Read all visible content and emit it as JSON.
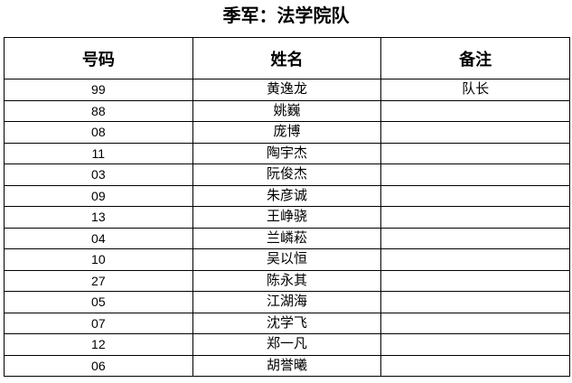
{
  "title": "季军：法学院队",
  "table": {
    "headers": [
      "号码",
      "姓名",
      "备注"
    ],
    "rows": [
      [
        "99",
        "黄逸龙",
        "队长"
      ],
      [
        "88",
        "姚巍",
        ""
      ],
      [
        "08",
        "庞博",
        ""
      ],
      [
        "11",
        "陶宇杰",
        ""
      ],
      [
        "03",
        "阮俊杰",
        ""
      ],
      [
        "09",
        "朱彦诚",
        ""
      ],
      [
        "13",
        "王峥骁",
        ""
      ],
      [
        "04",
        "兰嶙菘",
        ""
      ],
      [
        "10",
        "吴以恒",
        ""
      ],
      [
        "27",
        "陈永其",
        ""
      ],
      [
        "05",
        "江湖海",
        ""
      ],
      [
        "07",
        "沈学飞",
        ""
      ],
      [
        "12",
        "郑一凡",
        ""
      ],
      [
        "06",
        "胡誉曦",
        ""
      ]
    ]
  }
}
